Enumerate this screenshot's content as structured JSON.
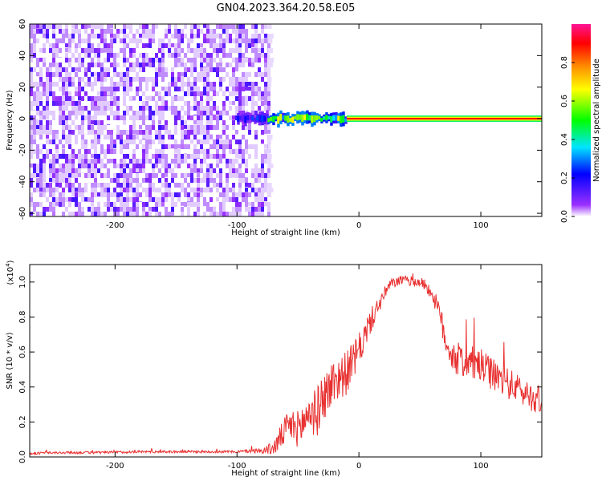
{
  "title": "GN04.2023.364.20.58.E05",
  "colorbar": {
    "label": "Normalized spectral amplitude",
    "ticks": [
      "0.0",
      "0.2",
      "0.4",
      "0.6",
      "0.8"
    ],
    "tick_values": [
      0.0,
      0.2,
      0.4,
      0.6,
      0.8
    ],
    "range": [
      0,
      1
    ],
    "colormap": [
      "#ffffff",
      "#9b30ff",
      "#0000ff",
      "#00e5ff",
      "#00ff00",
      "#ffff00",
      "#ff8c00",
      "#ff0000",
      "#ff1493"
    ]
  },
  "chart_data": [
    {
      "type": "heatmap",
      "xlabel": "Height of straight line (km)",
      "ylabel": "Frequency (Hz)",
      "xlim": [
        -270,
        150
      ],
      "ylim": [
        -62,
        60
      ],
      "xticks": [
        -200,
        -100,
        0,
        100
      ],
      "xtick_labels": [
        "-200",
        "-100",
        "0",
        "100"
      ],
      "yticks": [
        -60,
        -40,
        -20,
        0,
        20,
        40,
        60
      ],
      "ytick_labels": [
        "-60",
        "-40",
        "-20",
        "0",
        "20",
        "40",
        "60"
      ],
      "noise_region": {
        "x": [
          -270,
          -75
        ],
        "freq": [
          -62,
          60
        ],
        "amplitude": [
          0.0,
          0.25
        ]
      },
      "signal_band": {
        "freq": 0,
        "segments": [
          {
            "x": [
              -100,
              -75
            ],
            "half_width_hz": 3,
            "amplitude": 0.2
          },
          {
            "x": [
              -75,
              -10
            ],
            "half_width_hz": 3,
            "amplitude": 0.5
          },
          {
            "x": [
              -10,
              150
            ],
            "half_width_hz": 1.5,
            "amplitude": 0.95
          }
        ]
      }
    },
    {
      "type": "line",
      "xlabel": "Height of straight line (km)",
      "ylabel": "SNR (10 * v/v)",
      "yscale_label": "(x10",
      "yscale_exponent": "4",
      "color": "#e83030",
      "xlim": [
        -270,
        150
      ],
      "ylim": [
        0,
        1.1
      ],
      "xticks": [
        -200,
        -100,
        0,
        100
      ],
      "xtick_labels": [
        "-200",
        "-100",
        "0",
        "100"
      ],
      "yticks": [
        0.0,
        0.2,
        0.4,
        0.6,
        0.8,
        1.0
      ],
      "ytick_labels": [
        "0.0",
        "0.2",
        "0.4",
        "0.6",
        "0.8",
        "1.0"
      ],
      "series": [
        {
          "x": [
            -270,
            -240,
            -210,
            -180,
            -150,
            -120,
            -100,
            -80,
            -70,
            -65,
            -60,
            -55,
            -50,
            -45,
            -40,
            -35,
            -30,
            -25,
            -20,
            -15,
            -10,
            -5,
            0,
            5,
            10,
            15,
            20,
            25,
            30,
            35,
            40,
            45,
            50,
            55,
            60,
            65,
            70,
            75,
            80,
            90,
            100,
            110,
            120,
            130,
            140,
            150
          ],
          "y": [
            0.02,
            0.025,
            0.025,
            0.03,
            0.03,
            0.03,
            0.03,
            0.035,
            0.05,
            0.1,
            0.16,
            0.18,
            0.16,
            0.2,
            0.27,
            0.24,
            0.34,
            0.38,
            0.44,
            0.46,
            0.48,
            0.55,
            0.6,
            0.7,
            0.78,
            0.85,
            0.92,
            0.98,
            1.0,
            1.01,
            1.01,
            1.0,
            1.0,
            0.98,
            0.93,
            0.85,
            0.7,
            0.6,
            0.56,
            0.54,
            0.52,
            0.47,
            0.43,
            0.39,
            0.35,
            0.32
          ],
          "spread": [
            0.01,
            0.01,
            0.01,
            0.01,
            0.01,
            0.01,
            0.01,
            0.02,
            0.06,
            0.1,
            0.12,
            0.14,
            0.15,
            0.18,
            0.2,
            0.2,
            0.2,
            0.2,
            0.2,
            0.18,
            0.18,
            0.15,
            0.15,
            0.12,
            0.1,
            0.08,
            0.06,
            0.05,
            0.04,
            0.04,
            0.04,
            0.04,
            0.04,
            0.05,
            0.06,
            0.08,
            0.12,
            0.14,
            0.14,
            0.14,
            0.14,
            0.13,
            0.13,
            0.12,
            0.12,
            0.12
          ]
        }
      ]
    }
  ]
}
